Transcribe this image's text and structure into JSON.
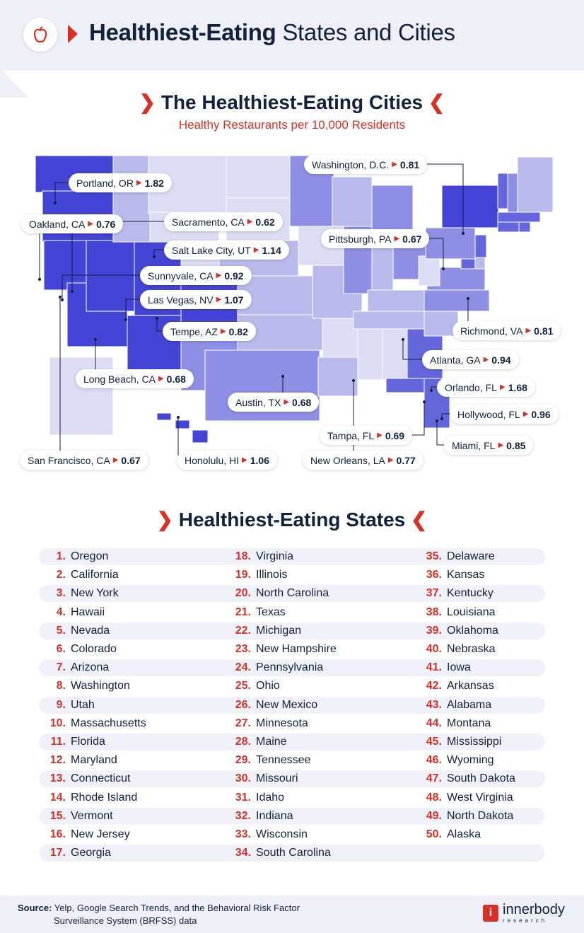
{
  "header": {
    "title_bold": "Healthiest-Eating",
    "title_rest": "States and Cities",
    "icon": "apple-icon"
  },
  "cities_section": {
    "title": "The Healthiest-Eating Cities",
    "subtitle": "Healthy Restaurants per 10,000 Residents"
  },
  "colors": {
    "accent": "#d93025",
    "navy": "#14213d",
    "shade_darkest": "#4444d6",
    "shade_dark": "#6666dc",
    "shade_mid": "#8e8ee4",
    "shade_light": "#b9b9ec",
    "shade_lightest": "#dcdcf4"
  },
  "cities": [
    {
      "name": "Portland, OR",
      "value": "1.82"
    },
    {
      "name": "Oakland, CA",
      "value": "0.76"
    },
    {
      "name": "Sacramento, CA",
      "value": "0.62"
    },
    {
      "name": "Salt Lake City, UT",
      "value": "1.14"
    },
    {
      "name": "Sunnyvale, CA",
      "value": "0.92"
    },
    {
      "name": "Las Vegas, NV",
      "value": "1.07"
    },
    {
      "name": "Tempe, AZ",
      "value": "0.82"
    },
    {
      "name": "Long Beach, CA",
      "value": "0.68"
    },
    {
      "name": "Austin, TX",
      "value": "0.68"
    },
    {
      "name": "San Francisco, CA",
      "value": "0.67"
    },
    {
      "name": "Honolulu, HI",
      "value": "1.06"
    },
    {
      "name": "New Orleans, LA",
      "value": "0.77"
    },
    {
      "name": "Tampa, FL",
      "value": "0.69"
    },
    {
      "name": "Miami, FL",
      "value": "0.85"
    },
    {
      "name": "Hollywood, FL",
      "value": "0.96"
    },
    {
      "name": "Orlando, FL",
      "value": "1.68"
    },
    {
      "name": "Atlanta, GA",
      "value": "0.94"
    },
    {
      "name": "Richmond, VA",
      "value": "0.81"
    },
    {
      "name": "Pittsburgh, PA",
      "value": "0.67"
    },
    {
      "name": "Washington, D.C.",
      "value": "0.81"
    }
  ],
  "states_section": {
    "title": "Healthiest-Eating States"
  },
  "states": [
    "Oregon",
    "California",
    "New York",
    "Hawaii",
    "Nevada",
    "Colorado",
    "Arizona",
    "Washington",
    "Utah",
    "Massachusetts",
    "Florida",
    "Maryland",
    "Connecticut",
    "Rhode Island",
    "Vermont",
    "New Jersey",
    "Georgia",
    "Virginia",
    "Illinois",
    "North Carolina",
    "Texas",
    "Michigan",
    "New Hampshire",
    "Pennsylvania",
    "Ohio",
    "New Mexico",
    "Minnesota",
    "Maine",
    "Tennessee",
    "Missouri",
    "Idaho",
    "Indiana",
    "Wisconsin",
    "South Carolina",
    "Delaware",
    "Kansas",
    "Kentucky",
    "Louisiana",
    "Oklahoma",
    "Nebraska",
    "Iowa",
    "Arkansas",
    "Alabama",
    "Montana",
    "Mississippi",
    "Wyoming",
    "South Dakota",
    "West Virginia",
    "North Dakota",
    "Alaska"
  ],
  "footer": {
    "source_label": "Source:",
    "source_line1": "Yelp, Google Search Trends, and the Behavioral Risk Factor",
    "source_line2": "Surveillance System (BRFSS) data",
    "brand": "innerbody",
    "brand_sub": "research"
  }
}
